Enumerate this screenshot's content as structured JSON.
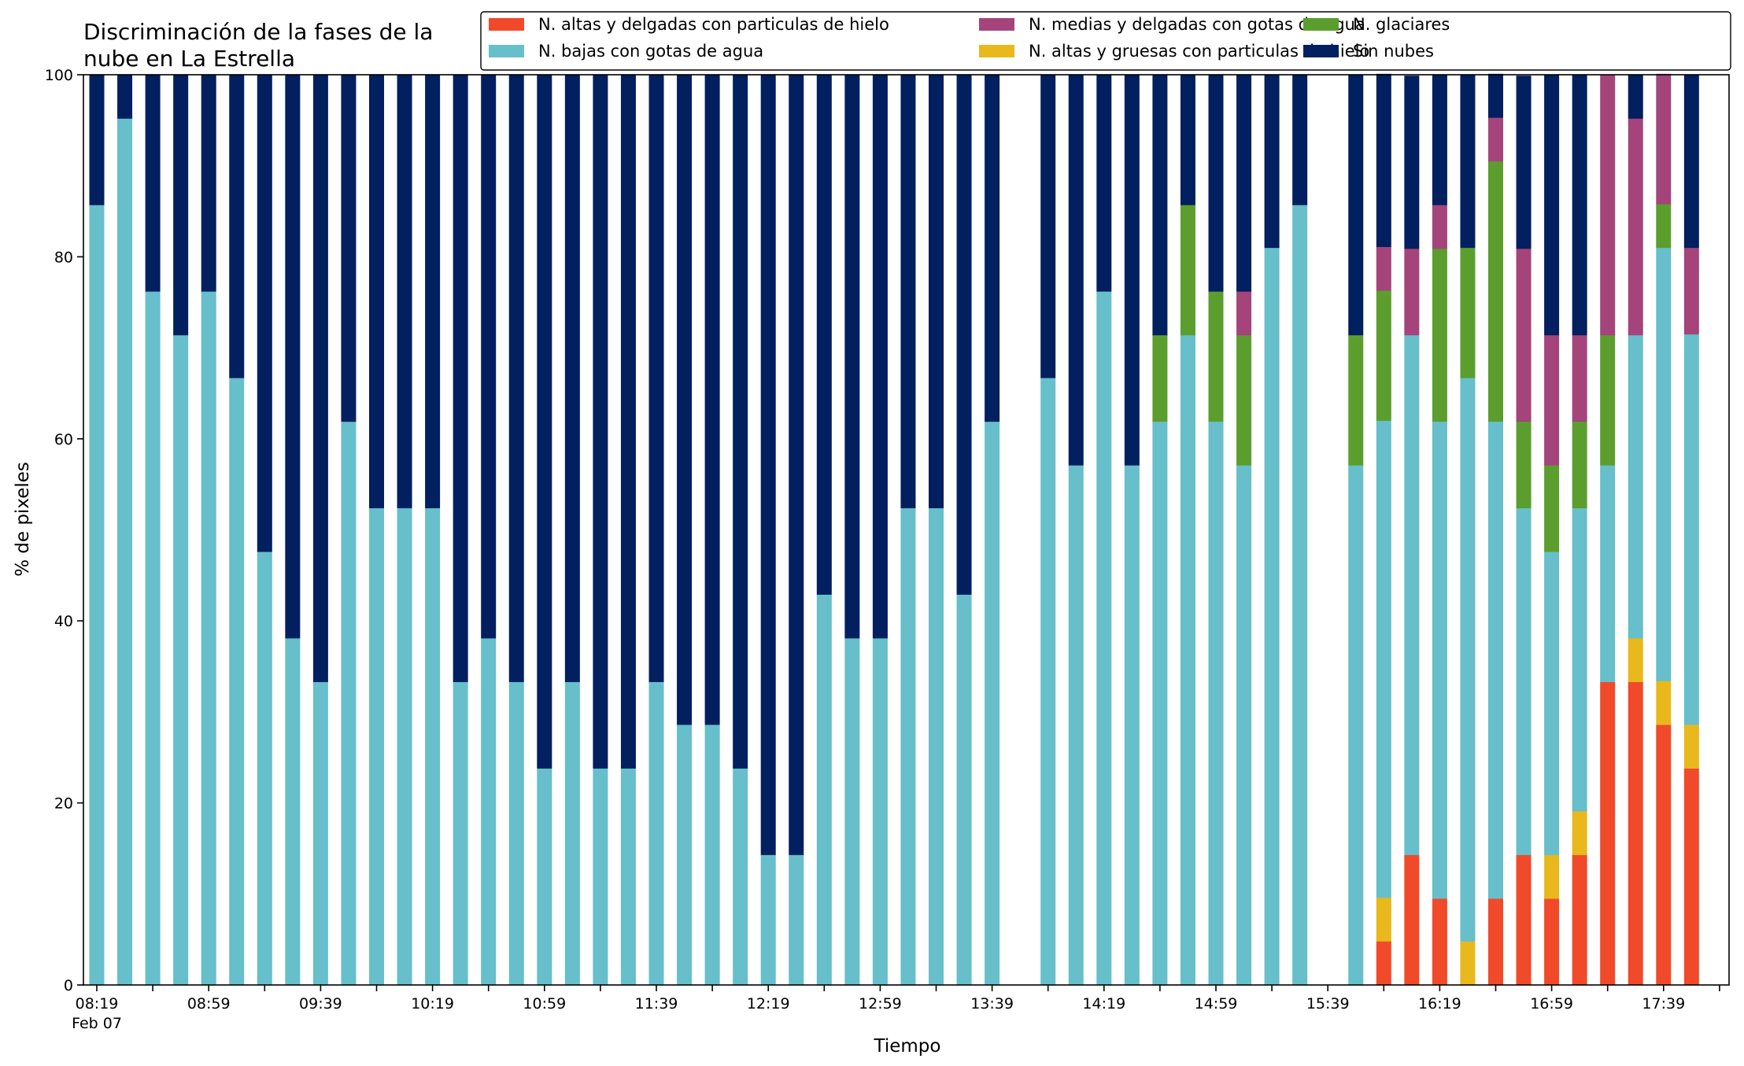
{
  "chart_data": {
    "type": "bar",
    "stacked": true,
    "title_lines": [
      "Discriminación de la fases de la",
      "nube en La Estrella"
    ],
    "xlabel": "Tiempo",
    "ylabel": "% de pixeles",
    "ylim": [
      0,
      100
    ],
    "yticks": [
      0,
      20,
      40,
      60,
      80,
      100
    ],
    "grid": false,
    "legend_position": "top-right",
    "x_tick_labels": [
      "08:19",
      "08:59",
      "09:39",
      "10:19",
      "10:59",
      "11:39",
      "12:19",
      "12:59",
      "13:39",
      "14:19",
      "14:59",
      "15:39",
      "16:19",
      "16:59",
      "17:39"
    ],
    "date_label": "Feb 07",
    "start_time": "08:19",
    "interval_minutes": 10,
    "series": [
      {
        "name": "N. altas y delgadas con particulas de hielo",
        "color": "#f04a2a"
      },
      {
        "name": "N. altas y gruesas con particulas de hielo",
        "color": "#e8b81c"
      },
      {
        "name": "N. bajas con gotas de agua",
        "color": "#66bfca"
      },
      {
        "name": "N. glaciares",
        "color": "#5b9e2e"
      },
      {
        "name": "N. medias y delgadas con gotas de agua",
        "color": "#a4447a"
      },
      {
        "name": "Sin nubes",
        "color": "#021f5f"
      }
    ],
    "legend_order": [
      0,
      2,
      4,
      1,
      3,
      5
    ],
    "bars": [
      {
        "time": "08:19",
        "values": [
          0,
          0,
          85.7,
          0,
          0,
          14.3
        ]
      },
      {
        "time": "08:29",
        "values": [
          0,
          0,
          95.2,
          0,
          0,
          4.8
        ]
      },
      {
        "time": "08:39",
        "values": [
          0,
          0,
          76.2,
          0,
          0,
          23.8
        ]
      },
      {
        "time": "08:49",
        "values": [
          0,
          0,
          71.4,
          0,
          0,
          28.6
        ]
      },
      {
        "time": "08:59",
        "values": [
          0,
          0,
          76.2,
          0,
          0,
          23.8
        ]
      },
      {
        "time": "09:09",
        "values": [
          0,
          0,
          66.7,
          0,
          0,
          33.3
        ]
      },
      {
        "time": "09:19",
        "values": [
          0,
          0,
          47.6,
          0,
          0,
          52.4
        ]
      },
      {
        "time": "09:29",
        "values": [
          0,
          0,
          38.1,
          0,
          0,
          61.9
        ]
      },
      {
        "time": "09:39",
        "values": [
          0,
          0,
          33.3,
          0,
          0,
          66.7
        ]
      },
      {
        "time": "09:49",
        "values": [
          0,
          0,
          61.9,
          0,
          0,
          38.1
        ]
      },
      {
        "time": "09:59",
        "values": [
          0,
          0,
          52.4,
          0,
          0,
          47.6
        ]
      },
      {
        "time": "10:09",
        "values": [
          0,
          0,
          52.4,
          0,
          0,
          47.6
        ]
      },
      {
        "time": "10:19",
        "values": [
          0,
          0,
          52.4,
          0,
          0,
          47.6
        ]
      },
      {
        "time": "10:29",
        "values": [
          0,
          0,
          33.3,
          0,
          0,
          66.7
        ]
      },
      {
        "time": "10:39",
        "values": [
          0,
          0,
          38.1,
          0,
          0,
          61.9
        ]
      },
      {
        "time": "10:49",
        "values": [
          0,
          0,
          33.3,
          0,
          0,
          66.7
        ]
      },
      {
        "time": "10:59",
        "values": [
          0,
          0,
          23.8,
          0,
          0,
          76.2
        ]
      },
      {
        "time": "11:09",
        "values": [
          0,
          0,
          33.3,
          0,
          0,
          66.7
        ]
      },
      {
        "time": "11:19",
        "values": [
          0,
          0,
          23.8,
          0,
          0,
          76.2
        ]
      },
      {
        "time": "11:29",
        "values": [
          0,
          0,
          23.8,
          0,
          0,
          76.2
        ]
      },
      {
        "time": "11:39",
        "values": [
          0,
          0,
          33.3,
          0,
          0,
          66.7
        ]
      },
      {
        "time": "11:49",
        "values": [
          0,
          0,
          28.6,
          0,
          0,
          71.4
        ]
      },
      {
        "time": "11:59",
        "values": [
          0,
          0,
          28.6,
          0,
          0,
          71.4
        ]
      },
      {
        "time": "12:09",
        "values": [
          0,
          0,
          23.8,
          0,
          0,
          76.2
        ]
      },
      {
        "time": "12:19",
        "values": [
          0,
          0,
          14.3,
          0,
          0,
          85.7
        ]
      },
      {
        "time": "12:29",
        "values": [
          0,
          0,
          14.3,
          0,
          0,
          85.7
        ]
      },
      {
        "time": "12:39",
        "values": [
          0,
          0,
          42.9,
          0,
          0,
          57.1
        ]
      },
      {
        "time": "12:49",
        "values": [
          0,
          0,
          38.1,
          0,
          0,
          61.9
        ]
      },
      {
        "time": "12:59",
        "values": [
          0,
          0,
          38.1,
          0,
          0,
          61.9
        ]
      },
      {
        "time": "13:09",
        "values": [
          0,
          0,
          52.4,
          0,
          0,
          47.6
        ]
      },
      {
        "time": "13:19",
        "values": [
          0,
          0,
          52.4,
          0,
          0,
          47.6
        ]
      },
      {
        "time": "13:29",
        "values": [
          0,
          0,
          42.9,
          0,
          0,
          57.1
        ]
      },
      {
        "time": "13:39",
        "values": [
          0,
          0,
          61.9,
          0,
          0,
          38.1
        ]
      },
      {
        "time": "13:49",
        "values": [
          0,
          0,
          0,
          0,
          0,
          0
        ]
      },
      {
        "time": "13:59",
        "values": [
          0,
          0,
          66.7,
          0,
          0,
          33.3
        ]
      },
      {
        "time": "14:09",
        "values": [
          0,
          0,
          57.1,
          0,
          0,
          42.9
        ]
      },
      {
        "time": "14:19",
        "values": [
          0,
          0,
          76.2,
          0,
          0,
          23.8
        ]
      },
      {
        "time": "14:29",
        "values": [
          0,
          0,
          57.1,
          0,
          0,
          42.9
        ]
      },
      {
        "time": "14:39",
        "values": [
          0,
          0,
          61.9,
          9.5,
          0,
          28.6
        ]
      },
      {
        "time": "14:49",
        "values": [
          0,
          0,
          71.4,
          14.3,
          0,
          14.3
        ]
      },
      {
        "time": "14:59",
        "values": [
          0,
          0,
          61.9,
          14.3,
          0,
          23.8
        ]
      },
      {
        "time": "15:09",
        "values": [
          0,
          0,
          57.1,
          14.3,
          4.8,
          23.8
        ]
      },
      {
        "time": "15:19",
        "values": [
          0,
          0,
          81.0,
          0,
          0,
          19.0
        ]
      },
      {
        "time": "15:29",
        "values": [
          0,
          0,
          85.7,
          0,
          0,
          14.3
        ]
      },
      {
        "time": "15:39",
        "values": [
          0,
          0,
          0,
          0,
          0,
          0
        ]
      },
      {
        "time": "15:49",
        "values": [
          0,
          0,
          57.1,
          14.3,
          0,
          28.6
        ]
      },
      {
        "time": "15:59",
        "values": [
          4.8,
          4.8,
          52.4,
          14.3,
          4.8,
          19.0
        ]
      },
      {
        "time": "16:09",
        "values": [
          14.3,
          0,
          57.1,
          0,
          9.5,
          19.0
        ]
      },
      {
        "time": "16:19",
        "values": [
          9.5,
          0,
          52.4,
          19.0,
          4.8,
          14.3
        ]
      },
      {
        "time": "16:29",
        "values": [
          0,
          4.8,
          61.9,
          14.3,
          0,
          19.0
        ]
      },
      {
        "time": "16:39",
        "values": [
          9.5,
          0,
          52.4,
          28.6,
          4.8,
          4.8
        ]
      },
      {
        "time": "16:49",
        "values": [
          14.3,
          0,
          38.1,
          9.5,
          19.0,
          19.0
        ]
      },
      {
        "time": "16:59",
        "values": [
          9.5,
          4.8,
          33.3,
          9.5,
          14.3,
          28.6
        ]
      },
      {
        "time": "17:09",
        "values": [
          14.3,
          4.8,
          33.3,
          9.5,
          9.5,
          28.6
        ]
      },
      {
        "time": "17:19",
        "values": [
          33.3,
          0,
          23.8,
          14.3,
          28.6,
          0
        ]
      },
      {
        "time": "17:29",
        "values": [
          33.3,
          4.8,
          33.3,
          0,
          23.8,
          4.8
        ]
      },
      {
        "time": "17:39",
        "values": [
          28.6,
          4.8,
          47.6,
          4.8,
          14.3,
          0
        ]
      },
      {
        "time": "17:49",
        "values": [
          23.8,
          4.8,
          42.9,
          0,
          9.5,
          19.0
        ]
      }
    ]
  }
}
